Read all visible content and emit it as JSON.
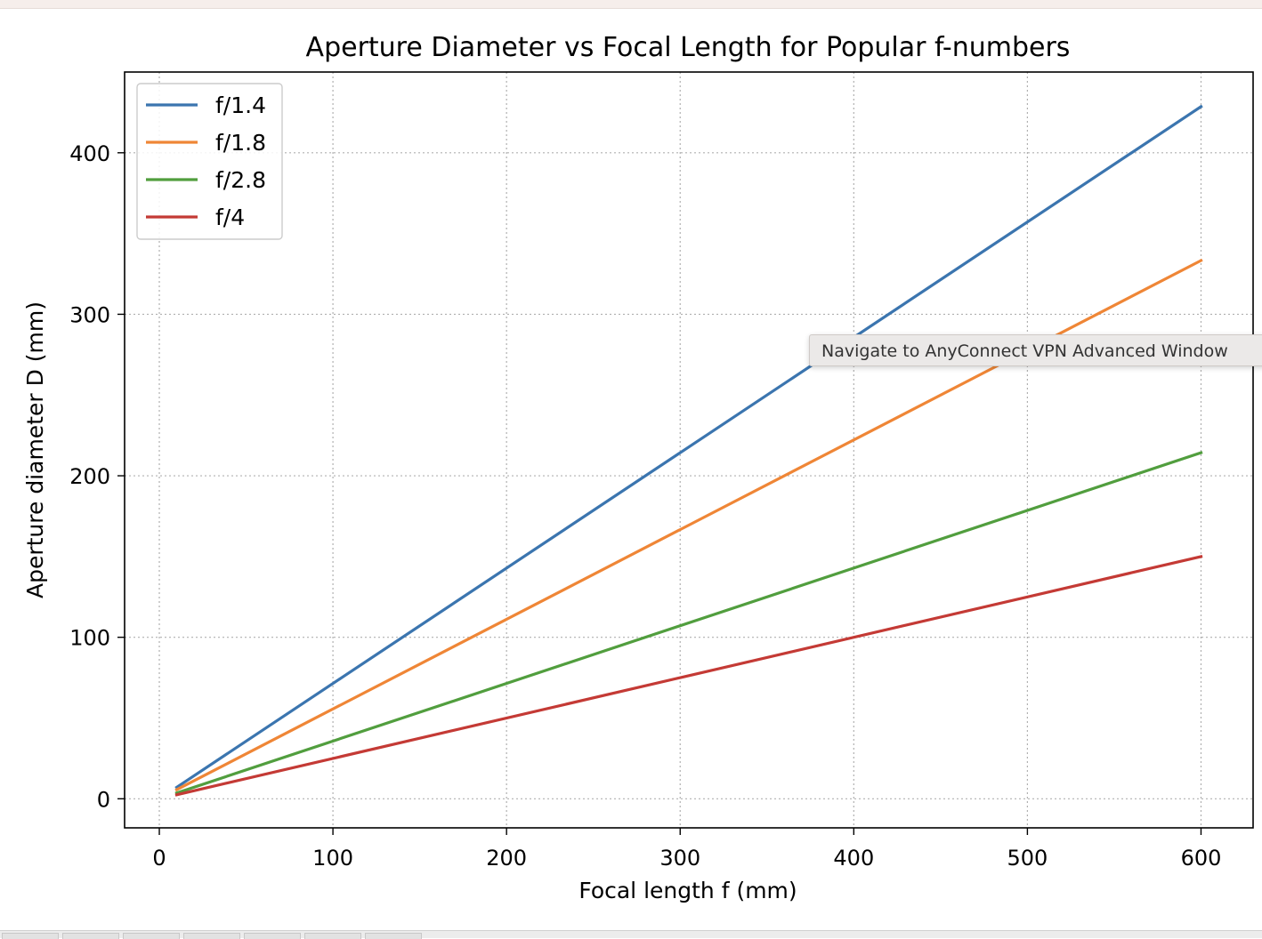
{
  "tooltip": {
    "text": "Navigate to AnyConnect VPN Advanced Window"
  },
  "colors": {
    "grid": "#b0b0b0",
    "text": "#000000",
    "legend_border": "#cccccc"
  },
  "chart_data": {
    "type": "line",
    "title": "Aperture Diameter vs Focal Length for Popular f-numbers",
    "xlabel": "Focal length f (mm)",
    "ylabel": "Aperture diameter D (mm)",
    "xlim": [
      -20,
      630
    ],
    "ylim": [
      -18,
      450
    ],
    "xticks": [
      0,
      100,
      200,
      300,
      400,
      500,
      600
    ],
    "yticks": [
      0,
      100,
      200,
      300,
      400
    ],
    "grid": true,
    "legend_position": "upper-left",
    "x": [
      10,
      600
    ],
    "series": [
      {
        "name": "f/1.4",
        "f_number": 1.4,
        "color": "#3b75af",
        "values": [
          7.1,
          428.6
        ]
      },
      {
        "name": "f/1.8",
        "f_number": 1.8,
        "color": "#ef8636",
        "values": [
          5.6,
          333.3
        ]
      },
      {
        "name": "f/2.8",
        "f_number": 2.8,
        "color": "#519e3e",
        "values": [
          3.6,
          214.3
        ]
      },
      {
        "name": "f/4",
        "f_number": 4,
        "color": "#c43a35",
        "values": [
          2.5,
          150.0
        ]
      }
    ]
  }
}
